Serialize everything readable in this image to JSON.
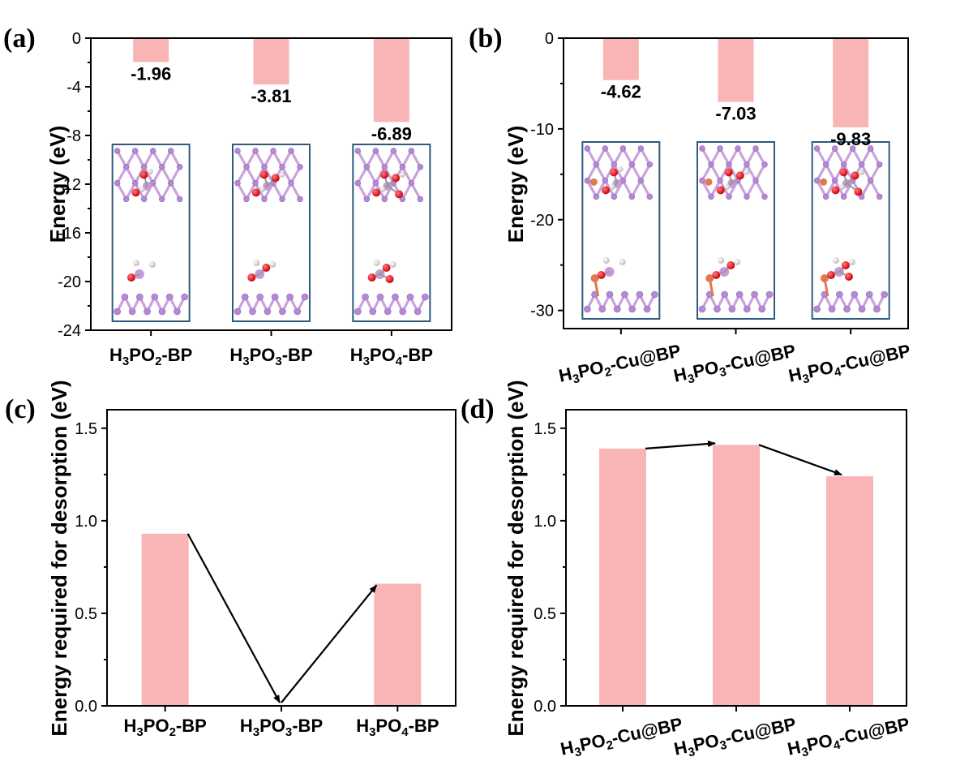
{
  "colors": {
    "bar": "#f9b5b5",
    "axis": "#000000",
    "inset_frame": "#2e5a7e",
    "phosphorus": "#b589d6",
    "oxygen": "#e41a1c",
    "hydrogen": "#f2f2f2",
    "copper": "#e07850"
  },
  "chart_data": [
    {
      "panel": "(a)",
      "type": "bar",
      "categories": [
        {
          "base": "H",
          "sub1": "3",
          "mid": "PO",
          "sub2": "2",
          "tail": "-BP"
        },
        {
          "base": "H",
          "sub1": "3",
          "mid": "PO",
          "sub2": "3",
          "tail": "-BP"
        },
        {
          "base": "H",
          "sub1": "3",
          "mid": "PO",
          "sub2": "4",
          "tail": "-BP"
        }
      ],
      "values": [
        -1.96,
        -3.81,
        -6.89
      ],
      "data_labels": [
        "-1.96",
        "-3.81",
        "-6.89"
      ],
      "ylabel": "Energy (eV)",
      "ylim": [
        -24,
        0
      ],
      "yticks": [
        0,
        -4,
        -8,
        -12,
        -16,
        -20,
        -24
      ],
      "ytick_labels": [
        "0",
        "-4",
        "-8",
        "-12",
        "-16",
        "-20",
        "-24"
      ],
      "insets": "adsorption structures on BP",
      "arrows": false
    },
    {
      "panel": "(b)",
      "type": "bar",
      "categories": [
        {
          "base": "H",
          "sub1": "3",
          "mid": "PO",
          "sub2": "2",
          "tail": "-Cu@BP"
        },
        {
          "base": "H",
          "sub1": "3",
          "mid": "PO",
          "sub2": "3",
          "tail": "-Cu@BP"
        },
        {
          "base": "H",
          "sub1": "3",
          "mid": "PO",
          "sub2": "4",
          "tail": "-Cu@BP"
        }
      ],
      "values": [
        -4.62,
        -7.03,
        -9.83
      ],
      "data_labels": [
        "-4.62",
        "-7.03",
        "-9.83"
      ],
      "ylabel": "Energy (eV)",
      "ylim": [
        -32,
        0
      ],
      "yticks": [
        0,
        -10,
        -20,
        -30
      ],
      "ytick_labels": [
        "0",
        "-10",
        "-20",
        "-30"
      ],
      "insets": "adsorption structures on Cu@BP",
      "arrows": false
    },
    {
      "panel": "(c)",
      "type": "bar",
      "categories": [
        {
          "base": "H",
          "sub1": "3",
          "mid": "PO",
          "sub2": "2",
          "tail": "-BP"
        },
        {
          "base": "H",
          "sub1": "3",
          "mid": "PO",
          "sub2": "3",
          "tail": "-BP"
        },
        {
          "base": "H",
          "sub1": "3",
          "mid": "PO",
          "sub2": "4",
          "tail": "-BP"
        }
      ],
      "values": [
        0.93,
        0.0,
        0.66
      ],
      "ylabel": "Energy required for desorption (eV)",
      "ylim": [
        0,
        1.6
      ],
      "yticks": [
        0,
        0.5,
        1.0,
        1.5
      ],
      "ytick_labels": [
        "0.0",
        "0.5",
        "1.0",
        "1.5"
      ],
      "arrows": true
    },
    {
      "panel": "(d)",
      "type": "bar",
      "categories": [
        {
          "base": "H",
          "sub1": "3",
          "mid": "PO",
          "sub2": "2",
          "tail": "-Cu@BP"
        },
        {
          "base": "H",
          "sub1": "3",
          "mid": "PO",
          "sub2": "3",
          "tail": "-Cu@BP"
        },
        {
          "base": "H",
          "sub1": "3",
          "mid": "PO",
          "sub2": "4",
          "tail": "-Cu@BP"
        }
      ],
      "values": [
        1.39,
        1.41,
        1.24
      ],
      "ylabel": "Energy required for desorption (eV)",
      "ylim": [
        0,
        1.6
      ],
      "yticks": [
        0,
        0.5,
        1.0,
        1.5
      ],
      "ytick_labels": [
        "0.0",
        "0.5",
        "1.0",
        "1.5"
      ],
      "arrows": true
    }
  ]
}
